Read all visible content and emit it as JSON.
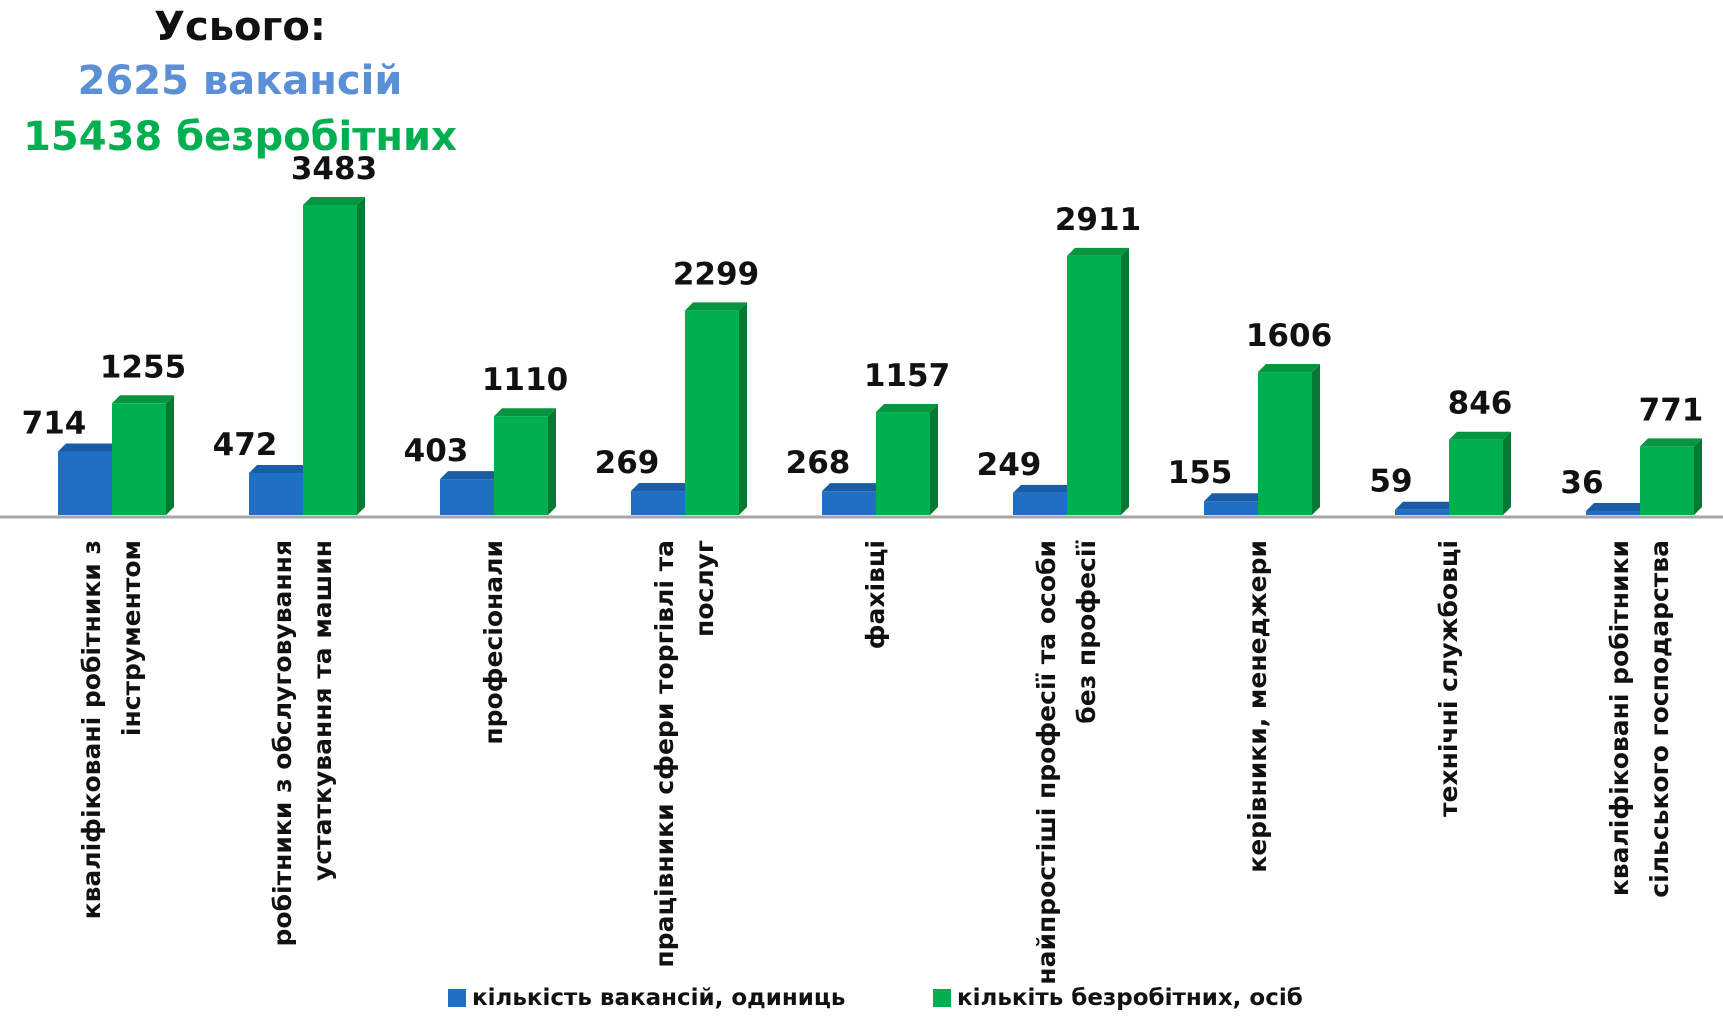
{
  "summary": {
    "title": "Усього:",
    "vacancies_text": "2625 вакансій",
    "unemployed_text": "15438 безробітних"
  },
  "colors": {
    "vacancies": "#1F6FC5",
    "unemployed": "#00B050",
    "vacancies_summary": "#5B8FD6",
    "unemployed_summary": "#00B050"
  },
  "chart_data": {
    "type": "bar",
    "categories": [
      [
        "кваліфіковані робітники з",
        "інструментом"
      ],
      [
        "робітники з обслуговування",
        "устаткування та машин"
      ],
      [
        "професіонали"
      ],
      [
        "працівники сфери торгівлі та",
        "послуг"
      ],
      [
        "фахівці"
      ],
      [
        "найпростіші професії та особи",
        "без професії"
      ],
      [
        "керівники, менеджери"
      ],
      [
        "технічні службовці"
      ],
      [
        "кваліфіковані робітники",
        "сільського господарства"
      ]
    ],
    "series": [
      {
        "name": "кількість вакансій, одиниць",
        "values": [
          714,
          472,
          403,
          269,
          268,
          249,
          155,
          59,
          36
        ]
      },
      {
        "name": "кількіть безробітних, осіб",
        "values": [
          1255,
          3483,
          1110,
          2299,
          1157,
          2911,
          1606,
          846,
          771
        ]
      }
    ],
    "ylim": [
      0,
      3483
    ],
    "grid": false,
    "legend_position": "bottom"
  }
}
